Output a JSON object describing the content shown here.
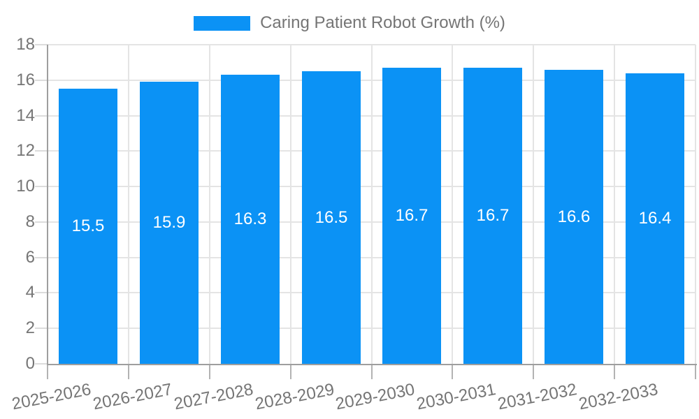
{
  "chart_data": {
    "type": "bar",
    "title": "Caring Patient Robot Growth (%)",
    "legend": {
      "position": "top-center",
      "series_label": "Caring Patient Robot Growth (%)"
    },
    "categories": [
      "2025-2026",
      "2026-2027",
      "2027-2028",
      "2028-2029",
      "2029-2030",
      "2030-2031",
      "2031-2032",
      "2032-2033"
    ],
    "series": [
      {
        "name": "Caring Patient Robot Growth (%)",
        "values": [
          15.5,
          15.9,
          16.3,
          16.5,
          16.7,
          16.7,
          16.6,
          16.4
        ],
        "value_labels": [
          "15.5",
          "15.9",
          "16.3",
          "16.5",
          "16.7",
          "16.7",
          "16.6",
          "16.4"
        ]
      }
    ],
    "xlabel": "",
    "ylabel": "",
    "ylim": [
      0,
      18
    ],
    "yticks": [
      0,
      2,
      4,
      6,
      8,
      10,
      12,
      14,
      16,
      18
    ],
    "grid": true,
    "x_label_rotation_deg": -11,
    "colors": {
      "bar": "#0b92f5",
      "grid": "#e4e4e4",
      "axis": "#9e9e9e",
      "y_tick": "#dcdcdc",
      "x_tick": "#b3b3b3",
      "tick_label": "#757575",
      "legend_label": "#757575",
      "bar_value_label": "#ffffff",
      "background": "#ffffff"
    }
  }
}
